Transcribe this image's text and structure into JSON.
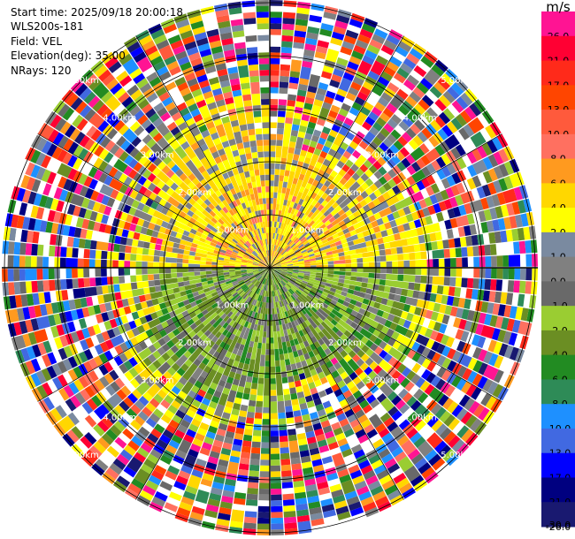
{
  "info": {
    "start_time": "Start time: 2025/09/18 20:00:18",
    "instrument": "WLS200s-181",
    "field": "Field: VEL",
    "elevation": "Elevation(deg): 35.00",
    "nrays": "NRays: 120"
  },
  "colorbar": {
    "unit": "m/s",
    "bands": [
      {
        "label": "26.0",
        "color": "#ff1493"
      },
      {
        "label": "21.0",
        "color": "#ff0033"
      },
      {
        "label": "17.0",
        "color": "#ff2a1a"
      },
      {
        "label": "13.0",
        "color": "#ff4500"
      },
      {
        "label": "10.0",
        "color": "#ff5a3c"
      },
      {
        "label": "8.0",
        "color": "#ff7060"
      },
      {
        "label": "6.0",
        "color": "#ff9a1f"
      },
      {
        "label": "4.0",
        "color": "#ffd700"
      },
      {
        "label": "2.0",
        "color": "#ffff00"
      },
      {
        "label": "1.0",
        "color": "#7a8aa0"
      },
      {
        "label": "0.0",
        "color": "#808080"
      },
      {
        "label": "-1.0",
        "color": "#696969"
      },
      {
        "label": "-2.0",
        "color": "#9acd32"
      },
      {
        "label": "-4.0",
        "color": "#6b8e23"
      },
      {
        "label": "-6.0",
        "color": "#228b22"
      },
      {
        "label": "-8.0",
        "color": "#2e8b57"
      },
      {
        "label": "-10.0",
        "color": "#1e90ff"
      },
      {
        "label": "-13.0",
        "color": "#4169e1"
      },
      {
        "label": "-17.0",
        "color": "#0000ff"
      },
      {
        "label": "-21.0",
        "color": "#000080"
      },
      {
        "label": "-26.0",
        "color": "#191970"
      }
    ],
    "bottom_label": "-30.0"
  },
  "range_rings_km": [
    1.0,
    2.0,
    3.0,
    4.0,
    5.0
  ],
  "ring_labels": [
    "1.00km",
    "2.00km",
    "3.00km",
    "4.00km",
    "5.00km"
  ],
  "chart_data": {
    "type": "heatmap",
    "projection": "polar (PPI radar scan)",
    "field": "VEL",
    "units": "m/s",
    "instrument": "WLS200s-181",
    "start_time": "2025/09/18 20:00:18",
    "elevation_deg": 35.0,
    "n_rays": 120,
    "range_rings_km": [
      1.0,
      2.0,
      3.0,
      4.0,
      5.0
    ],
    "color_scale": [
      -30.0,
      -26.0,
      -21.0,
      -17.0,
      -13.0,
      -10.0,
      -8.0,
      -6.0,
      -4.0,
      -2.0,
      -1.0,
      0.0,
      1.0,
      2.0,
      4.0,
      6.0,
      8.0,
      10.0,
      13.0,
      17.0,
      21.0,
      26.0
    ],
    "pattern": {
      "near_range_north_half": "positive velocities ~1 to 4 m/s (yellow/orange)",
      "near_range_south_half": "negative velocities ~-1 to -4 m/s (green)",
      "beyond_about_3km": "noisy, values spanning the full color scale"
    }
  }
}
